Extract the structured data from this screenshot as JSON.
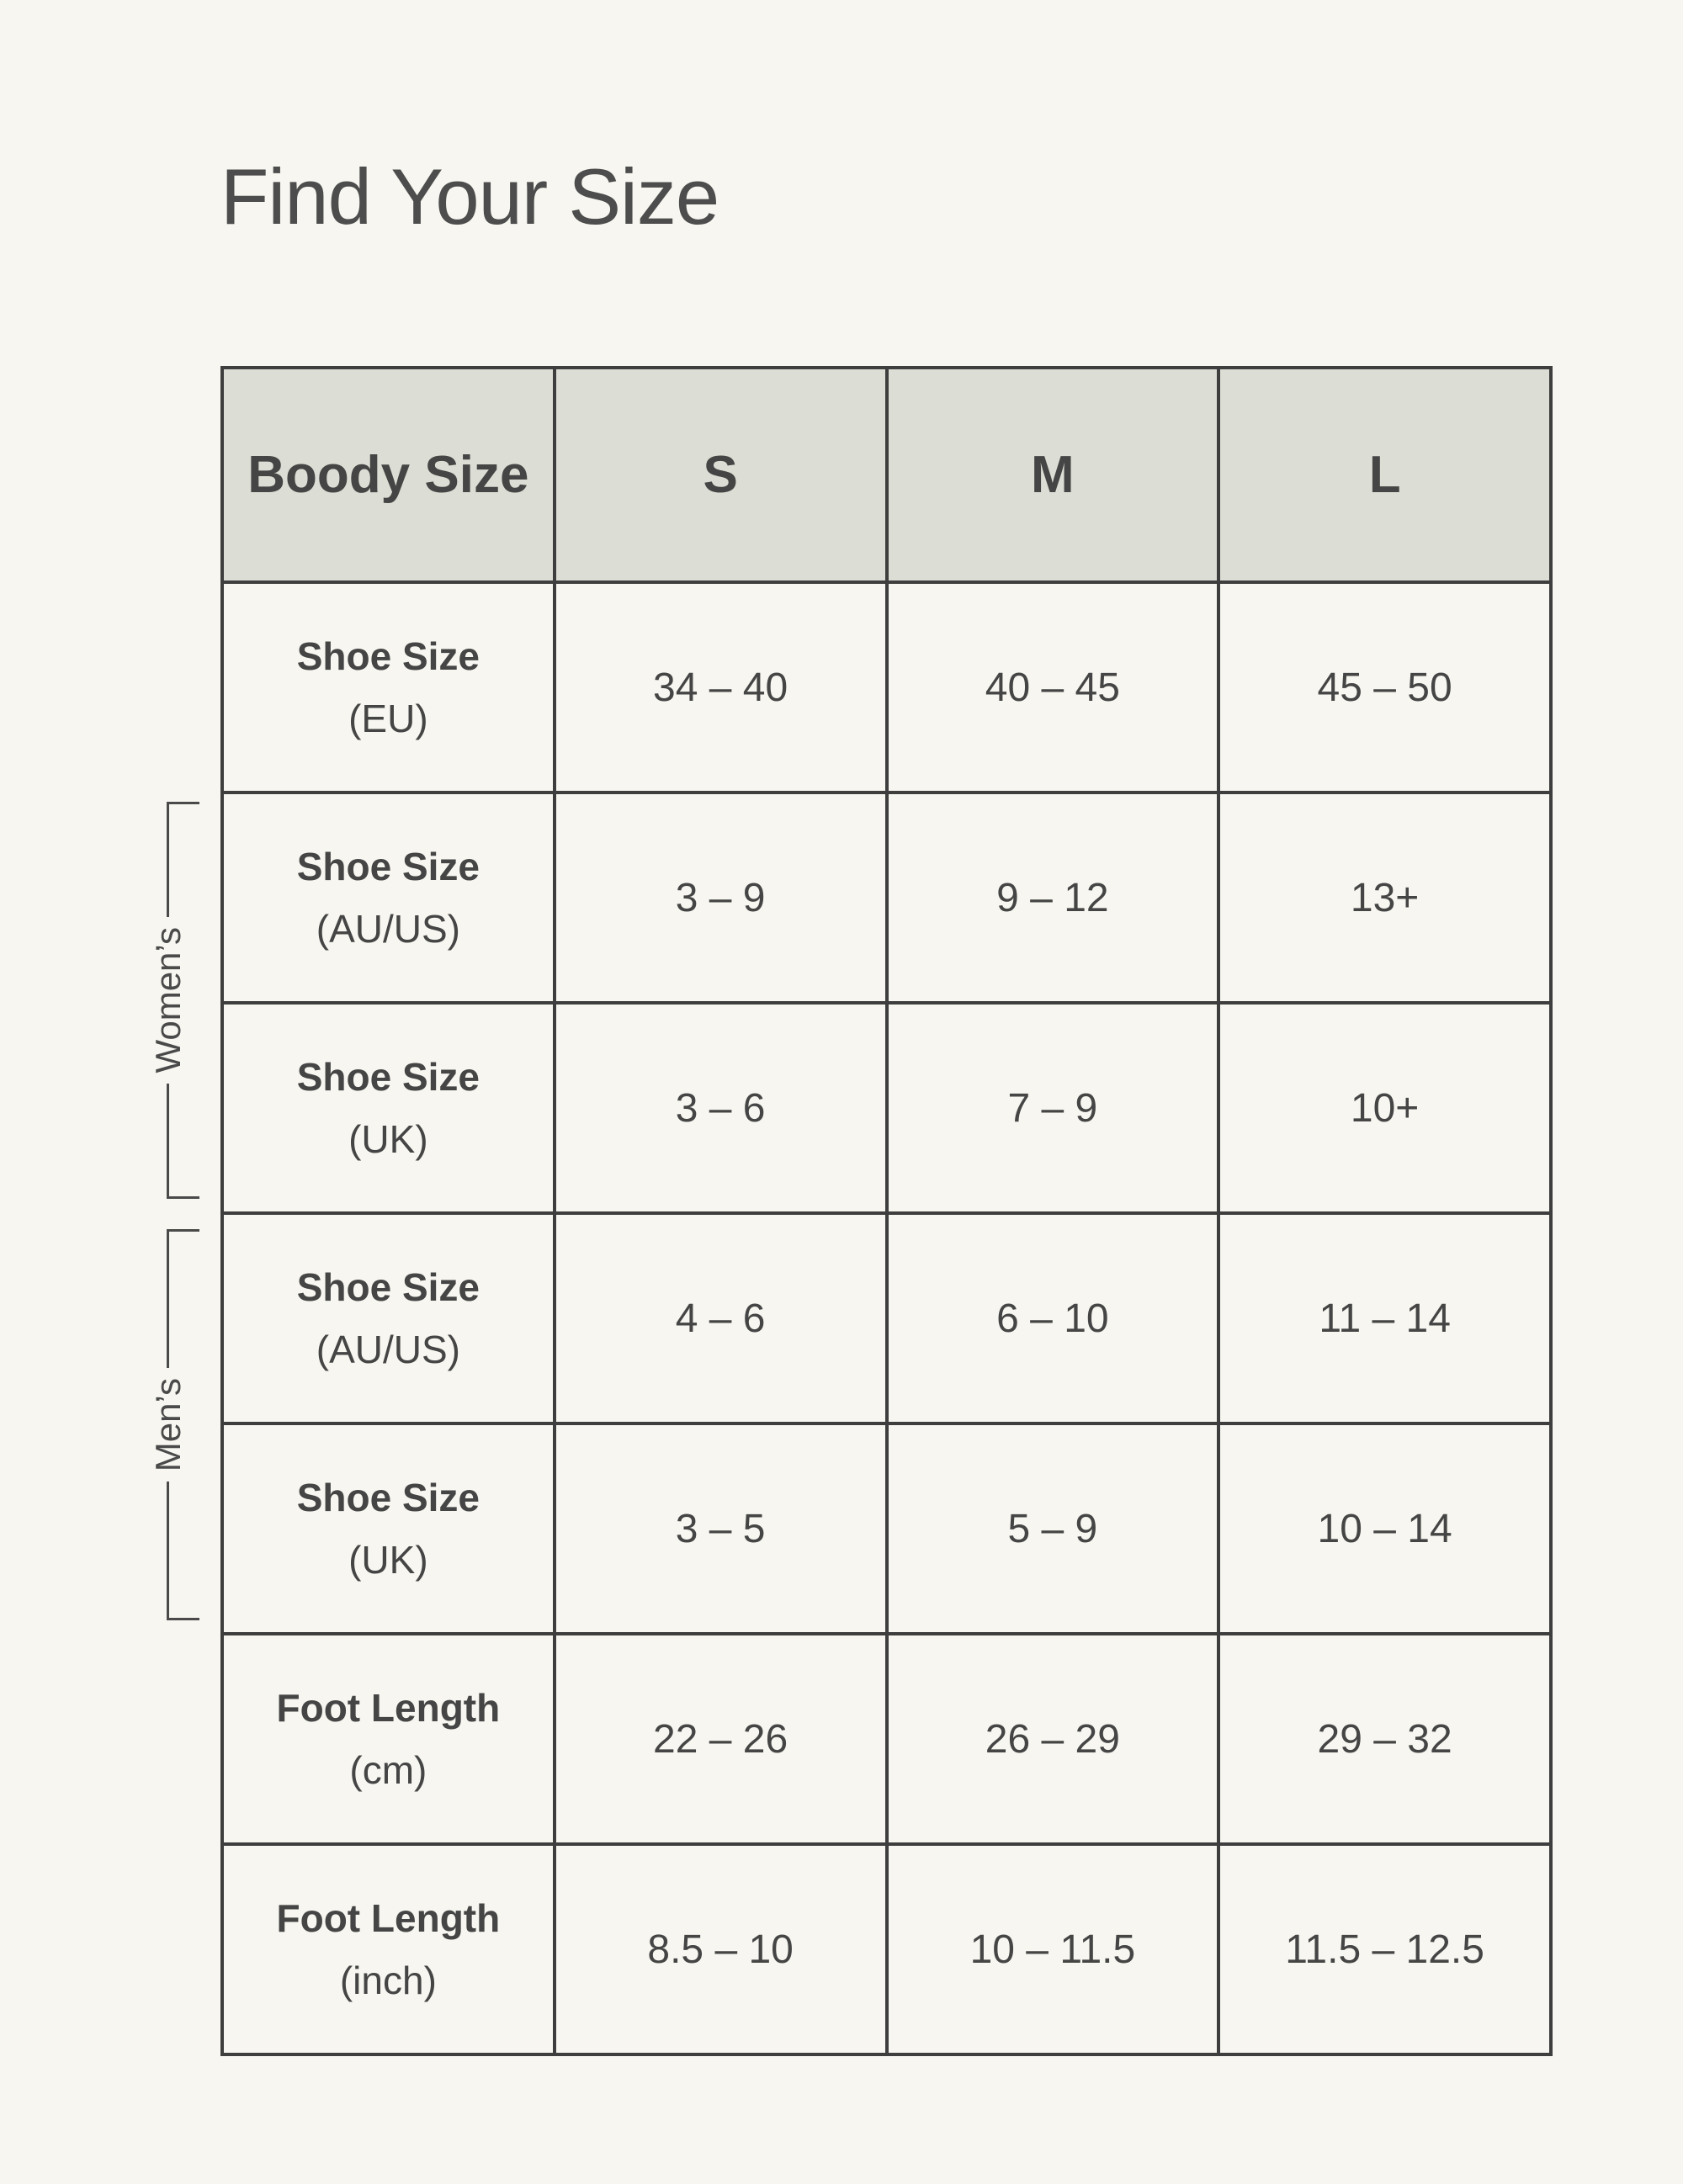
{
  "page": {
    "title": "Find Your Size"
  },
  "table": {
    "header": {
      "label": "Boody Size",
      "sizes": [
        "S",
        "M",
        "L"
      ]
    },
    "rows": [
      {
        "label": "Shoe Size",
        "sublabel": "(EU)",
        "group": "",
        "values": [
          "34 – 40",
          "40 – 45",
          "45 – 50"
        ]
      },
      {
        "label": "Shoe Size",
        "sublabel": "(AU/US)",
        "group": "Women’s",
        "values": [
          "3 – 9",
          "9 – 12",
          "13+"
        ]
      },
      {
        "label": "Shoe Size",
        "sublabel": "(UK)",
        "group": "Women’s",
        "values": [
          "3 – 6",
          "7 – 9",
          "10+"
        ]
      },
      {
        "label": "Shoe Size",
        "sublabel": "(AU/US)",
        "group": "Men’s",
        "values": [
          "4 – 6",
          "6 – 10",
          "11 – 14"
        ]
      },
      {
        "label": "Shoe Size",
        "sublabel": "(UK)",
        "group": "Men’s",
        "values": [
          "3 – 5",
          "5 – 9",
          "10 – 14"
        ]
      },
      {
        "label": "Foot Length",
        "sublabel": "(cm)",
        "group": "",
        "values": [
          "22 – 26",
          "26 – 29",
          "29 – 32"
        ]
      },
      {
        "label": "Foot Length",
        "sublabel": "(inch)",
        "group": "",
        "values": [
          "8.5 – 10",
          "10 – 11.5",
          "11.5 – 12.5"
        ]
      }
    ]
  },
  "brackets": {
    "womens": "Women’s",
    "mens": "Men’s"
  },
  "colors": {
    "background": "#f7f6f0",
    "header_bg": "#dcddd4",
    "border": "#3e3e3e",
    "text": "#454545",
    "title": "#4d4d4d",
    "bracket": "#4a4a4a"
  }
}
